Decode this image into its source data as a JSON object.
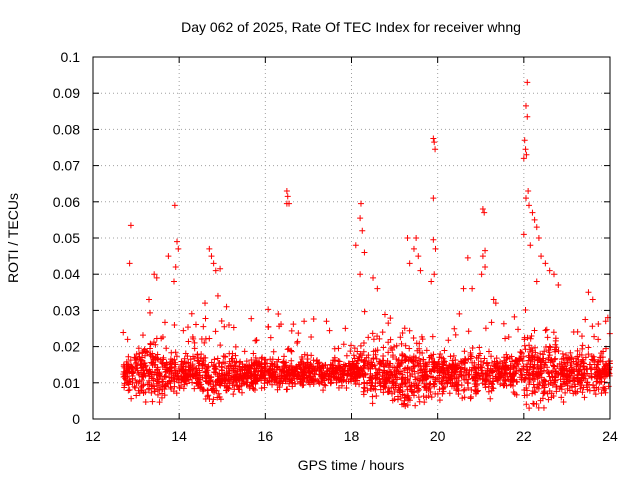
{
  "chart_data": {
    "type": "scatter",
    "title": "Day 062 of 2025, Rate Of TEC Index for receiver whng",
    "xlabel": "GPS time / hours",
    "ylabel": "ROTI / TECUs",
    "xlim": [
      12,
      24
    ],
    "ylim": [
      0,
      0.1
    ],
    "grid": true,
    "marker": "+",
    "color": "#ff0000",
    "x_ticks": [
      "12",
      "14",
      "16",
      "18",
      "20",
      "22",
      "24"
    ],
    "y_ticks": [
      "0",
      "0.01",
      "0.02",
      "0.03",
      "0.04",
      "0.05",
      "0.06",
      "0.07",
      "0.08",
      "0.09",
      "0.1"
    ],
    "x_start": 12.7,
    "x_end": 24.0,
    "base_level": 0.0125,
    "dense_point_count": 2600,
    "outliers": [
      {
        "x": 12.88,
        "y": 0.0535
      },
      {
        "x": 12.85,
        "y": 0.043
      },
      {
        "x": 13.9,
        "y": 0.059
      },
      {
        "x": 13.95,
        "y": 0.049
      },
      {
        "x": 13.98,
        "y": 0.047
      },
      {
        "x": 13.92,
        "y": 0.042
      },
      {
        "x": 13.88,
        "y": 0.038
      },
      {
        "x": 13.75,
        "y": 0.045
      },
      {
        "x": 13.42,
        "y": 0.04
      },
      {
        "x": 13.48,
        "y": 0.039
      },
      {
        "x": 13.3,
        "y": 0.033
      },
      {
        "x": 14.7,
        "y": 0.047
      },
      {
        "x": 14.75,
        "y": 0.045
      },
      {
        "x": 14.8,
        "y": 0.043
      },
      {
        "x": 14.85,
        "y": 0.041
      },
      {
        "x": 14.95,
        "y": 0.0415
      },
      {
        "x": 14.9,
        "y": 0.034
      },
      {
        "x": 14.6,
        "y": 0.032
      },
      {
        "x": 15.1,
        "y": 0.031
      },
      {
        "x": 16.5,
        "y": 0.063
      },
      {
        "x": 16.52,
        "y": 0.0615
      },
      {
        "x": 16.55,
        "y": 0.0595
      },
      {
        "x": 16.5,
        "y": 0.0595
      },
      {
        "x": 16.3,
        "y": 0.029
      },
      {
        "x": 16.9,
        "y": 0.027
      },
      {
        "x": 18.22,
        "y": 0.0595
      },
      {
        "x": 18.2,
        "y": 0.0555
      },
      {
        "x": 18.25,
        "y": 0.052
      },
      {
        "x": 18.1,
        "y": 0.048
      },
      {
        "x": 18.3,
        "y": 0.046
      },
      {
        "x": 18.2,
        "y": 0.04
      },
      {
        "x": 18.5,
        "y": 0.039
      },
      {
        "x": 18.6,
        "y": 0.036
      },
      {
        "x": 19.3,
        "y": 0.05
      },
      {
        "x": 19.5,
        "y": 0.05
      },
      {
        "x": 19.45,
        "y": 0.047
      },
      {
        "x": 19.55,
        "y": 0.045
      },
      {
        "x": 19.35,
        "y": 0.043
      },
      {
        "x": 19.6,
        "y": 0.041
      },
      {
        "x": 19.9,
        "y": 0.0775
      },
      {
        "x": 19.92,
        "y": 0.0765
      },
      {
        "x": 19.94,
        "y": 0.0745
      },
      {
        "x": 19.9,
        "y": 0.061
      },
      {
        "x": 19.9,
        "y": 0.0495
      },
      {
        "x": 19.95,
        "y": 0.047
      },
      {
        "x": 19.92,
        "y": 0.04
      },
      {
        "x": 19.85,
        "y": 0.038
      },
      {
        "x": 20.7,
        "y": 0.0445
      },
      {
        "x": 20.6,
        "y": 0.036
      },
      {
        "x": 20.8,
        "y": 0.036
      },
      {
        "x": 21.05,
        "y": 0.058
      },
      {
        "x": 21.08,
        "y": 0.057
      },
      {
        "x": 21.1,
        "y": 0.0465
      },
      {
        "x": 21.05,
        "y": 0.045
      },
      {
        "x": 21.1,
        "y": 0.042
      },
      {
        "x": 21.02,
        "y": 0.04
      },
      {
        "x": 21.3,
        "y": 0.033
      },
      {
        "x": 21.35,
        "y": 0.032
      },
      {
        "x": 22.08,
        "y": 0.093
      },
      {
        "x": 22.05,
        "y": 0.0865
      },
      {
        "x": 22.08,
        "y": 0.0835
      },
      {
        "x": 22.02,
        "y": 0.077
      },
      {
        "x": 22.04,
        "y": 0.0745
      },
      {
        "x": 22.06,
        "y": 0.073
      },
      {
        "x": 22.0,
        "y": 0.072
      },
      {
        "x": 22.1,
        "y": 0.063
      },
      {
        "x": 22.05,
        "y": 0.061
      },
      {
        "x": 22.12,
        "y": 0.059
      },
      {
        "x": 22.2,
        "y": 0.057
      },
      {
        "x": 22.25,
        "y": 0.055
      },
      {
        "x": 22.3,
        "y": 0.053
      },
      {
        "x": 22.0,
        "y": 0.051
      },
      {
        "x": 22.35,
        "y": 0.05
      },
      {
        "x": 22.15,
        "y": 0.048
      },
      {
        "x": 22.4,
        "y": 0.045
      },
      {
        "x": 22.5,
        "y": 0.043
      },
      {
        "x": 22.6,
        "y": 0.041
      },
      {
        "x": 22.7,
        "y": 0.04
      },
      {
        "x": 22.3,
        "y": 0.038
      },
      {
        "x": 22.8,
        "y": 0.037
      },
      {
        "x": 23.5,
        "y": 0.035
      },
      {
        "x": 23.6,
        "y": 0.033
      },
      {
        "x": 23.9,
        "y": 0.027
      },
      {
        "x": 23.95,
        "y": 0.028
      }
    ]
  }
}
